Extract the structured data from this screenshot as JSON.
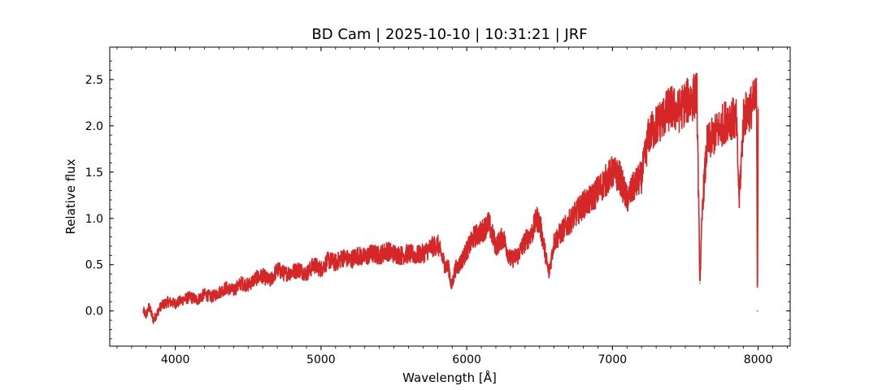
{
  "chart_data": {
    "type": "line",
    "title": "BD Cam | 2025-10-10 | 10:31:21 | JRF",
    "xlabel": "Wavelength [Å]",
    "ylabel": "Relative flux",
    "xlim": [
      3550,
      8220
    ],
    "ylim": [
      -0.38,
      2.85
    ],
    "xticks": [
      4000,
      5000,
      6000,
      7000,
      8000
    ],
    "yticks": [
      0.0,
      0.5,
      1.0,
      1.5,
      2.0,
      2.5
    ],
    "xticklabels": [
      "4000",
      "5000",
      "6000",
      "7000",
      "8000"
    ],
    "yticklabels": [
      "0.0",
      "0.5",
      "1.0",
      "1.5",
      "2.0",
      "2.5"
    ],
    "grid": false,
    "legend": "none",
    "series": [
      {
        "color": "#d62728",
        "x": [
          3780,
          3800,
          3820,
          3850,
          3900,
          3950,
          4000,
          4050,
          4100,
          4150,
          4200,
          4250,
          4300,
          4350,
          4400,
          4450,
          4500,
          4550,
          4600,
          4650,
          4700,
          4750,
          4800,
          4850,
          4900,
          4950,
          5000,
          5050,
          5100,
          5150,
          5200,
          5250,
          5300,
          5350,
          5400,
          5450,
          5500,
          5550,
          5600,
          5650,
          5700,
          5750,
          5800,
          5850,
          5880,
          5895,
          5920,
          5950,
          6000,
          6050,
          6100,
          6150,
          6200,
          6250,
          6300,
          6350,
          6400,
          6450,
          6480,
          6500,
          6520,
          6563,
          6600,
          6650,
          6700,
          6750,
          6800,
          6850,
          6900,
          6950,
          7000,
          7050,
          7100,
          7150,
          7200,
          7250,
          7300,
          7350,
          7400,
          7450,
          7500,
          7550,
          7580,
          7600,
          7620,
          7650,
          7700,
          7750,
          7800,
          7850,
          7870,
          7900,
          7950,
          7990,
          7995,
          8000
        ],
        "y": [
          0.0,
          -0.05,
          0.05,
          -0.1,
          0.05,
          0.1,
          0.08,
          0.12,
          0.15,
          0.12,
          0.18,
          0.15,
          0.2,
          0.25,
          0.22,
          0.3,
          0.28,
          0.35,
          0.38,
          0.32,
          0.45,
          0.4,
          0.42,
          0.45,
          0.4,
          0.5,
          0.45,
          0.55,
          0.52,
          0.58,
          0.55,
          0.6,
          0.58,
          0.62,
          0.6,
          0.65,
          0.62,
          0.6,
          0.62,
          0.6,
          0.62,
          0.68,
          0.72,
          0.5,
          0.45,
          0.25,
          0.45,
          0.5,
          0.65,
          0.8,
          0.85,
          0.95,
          0.7,
          0.8,
          0.55,
          0.6,
          0.75,
          0.85,
          1.0,
          0.95,
          0.8,
          0.4,
          0.75,
          0.85,
          0.95,
          1.05,
          1.15,
          1.2,
          1.3,
          1.4,
          1.5,
          1.45,
          1.2,
          1.35,
          1.45,
          1.9,
          2.0,
          2.1,
          2.2,
          2.15,
          2.25,
          2.3,
          2.35,
          0.3,
          1.2,
          1.8,
          1.9,
          2.0,
          2.1,
          2.05,
          1.2,
          2.1,
          2.2,
          2.3,
          0.0,
          2.2
        ]
      }
    ]
  }
}
